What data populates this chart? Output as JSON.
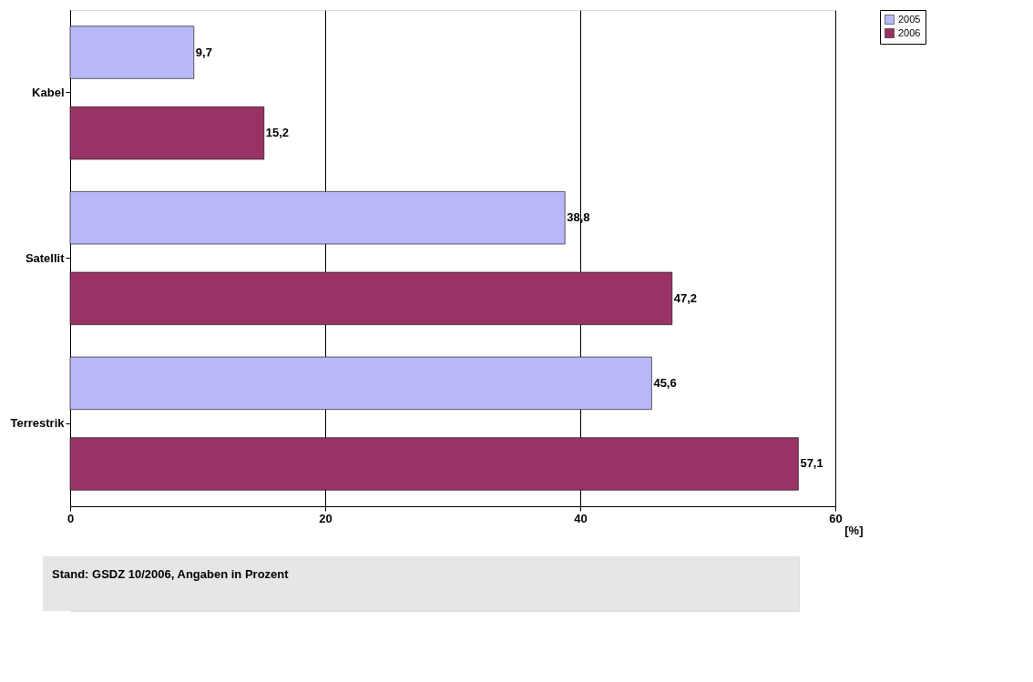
{
  "chart_data": {
    "type": "bar",
    "orientation": "horizontal",
    "categories": [
      "Kabel",
      "Satellit",
      "Terrestrik"
    ],
    "series": [
      {
        "name": "2005",
        "color": "#b8b8f8",
        "values": [
          9.7,
          38.8,
          45.6
        ],
        "value_labels": [
          "9,7",
          "38,8",
          "45,6"
        ]
      },
      {
        "name": "2006",
        "color": "#993366",
        "values": [
          15.2,
          47.2,
          57.1
        ],
        "value_labels": [
          "15,2",
          "47,2",
          "57,1"
        ]
      }
    ],
    "xlabel": "[%]",
    "xlim": [
      0,
      60
    ],
    "xticks": [
      0,
      20,
      40,
      60
    ],
    "grid": "x",
    "legend": "right",
    "annotations": [
      "Stand: GSDZ 10/2006, Angaben in Prozent"
    ]
  }
}
